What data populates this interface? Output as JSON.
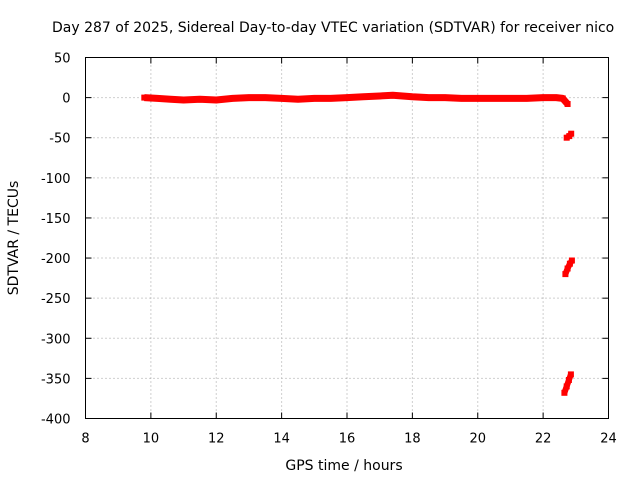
{
  "chart_data": {
    "type": "scatter",
    "title": "Day 287 of 2025, Sidereal Day-to-day VTEC variation (SDTVAR) for receiver nico",
    "xlabel": "GPS time / hours",
    "ylabel": "SDTVAR / TECUs",
    "xlim": [
      8,
      24
    ],
    "ylim": [
      -400,
      50
    ],
    "xticks": [
      "8",
      "10",
      "12",
      "14",
      "16",
      "18",
      "20",
      "22",
      "24"
    ],
    "xtick_values": [
      8,
      10,
      12,
      14,
      16,
      18,
      20,
      22,
      24
    ],
    "yticks": [
      "50",
      "0",
      "-50",
      "-100",
      "-150",
      "-200",
      "-250",
      "-300",
      "-350",
      "-400"
    ],
    "ytick_values": [
      50,
      0,
      -50,
      -100,
      -150,
      -200,
      -250,
      -300,
      -350,
      -400
    ],
    "grid": true,
    "series_color": "#ff0000",
    "series": [
      {
        "segments": [
          [
            [
              9.8,
              0
            ],
            [
              10.2,
              -1
            ],
            [
              10.6,
              -2
            ],
            [
              11.0,
              -3
            ],
            [
              11.5,
              -2
            ],
            [
              12.0,
              -3
            ],
            [
              12.5,
              -1
            ],
            [
              13.0,
              0
            ],
            [
              13.5,
              0
            ],
            [
              14.0,
              -1
            ],
            [
              14.5,
              -2
            ],
            [
              15.0,
              -1
            ],
            [
              15.5,
              -1
            ],
            [
              16.0,
              0
            ],
            [
              16.5,
              1
            ],
            [
              17.0,
              2
            ],
            [
              17.4,
              3
            ],
            [
              18.0,
              1
            ],
            [
              18.5,
              0
            ],
            [
              19.0,
              0
            ],
            [
              19.5,
              -1
            ],
            [
              20.0,
              -1
            ],
            [
              20.5,
              -1
            ],
            [
              21.0,
              -1
            ],
            [
              21.5,
              -1
            ],
            [
              22.0,
              0
            ],
            [
              22.4,
              0
            ],
            [
              22.6,
              -1
            ],
            [
              22.75,
              -8
            ]
          ],
          [
            [
              22.72,
              -50
            ],
            [
              22.8,
              -48
            ],
            [
              22.86,
              -45
            ]
          ],
          [
            [
              22.68,
              -220
            ],
            [
              22.75,
              -213
            ],
            [
              22.82,
              -207
            ],
            [
              22.88,
              -203
            ]
          ],
          [
            [
              22.65,
              -368
            ],
            [
              22.72,
              -360
            ],
            [
              22.79,
              -352
            ],
            [
              22.85,
              -345
            ]
          ]
        ]
      }
    ]
  }
}
